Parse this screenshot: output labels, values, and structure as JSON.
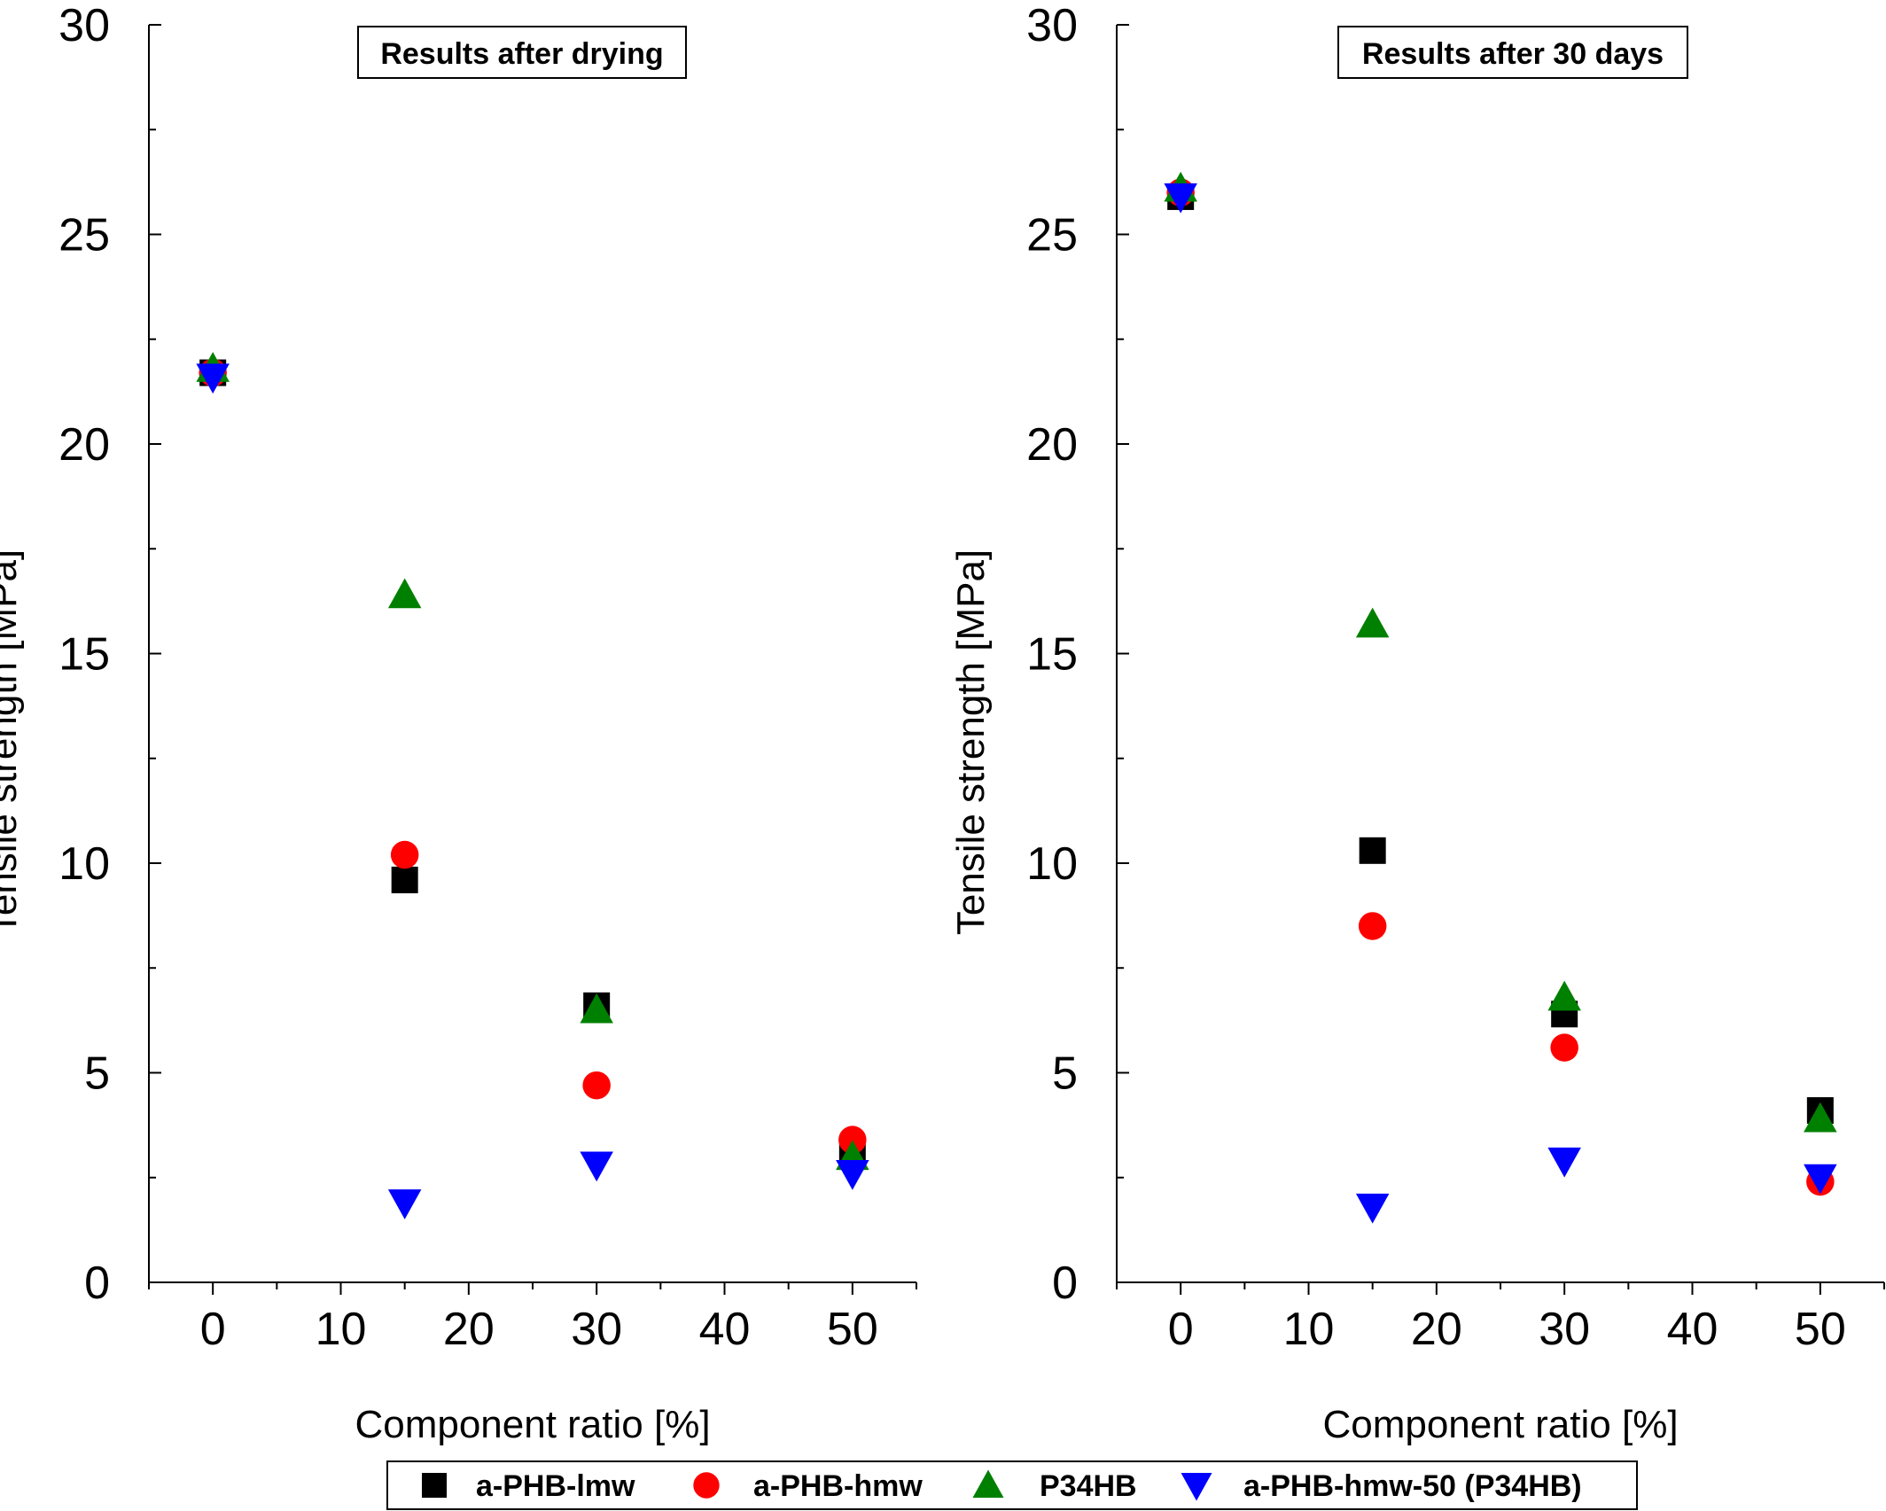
{
  "chart_data": [
    {
      "type": "scatter",
      "title": "Results after drying",
      "xlabel": "Component ratio [%]",
      "ylabel": "Tensile strength [MPa]",
      "xlim": [
        -5,
        55
      ],
      "ylim": [
        0,
        30
      ],
      "xticks": [
        0,
        10,
        20,
        30,
        40,
        50
      ],
      "yticks": [
        0,
        5,
        10,
        15,
        20,
        25,
        30
      ],
      "grid": false,
      "series": [
        {
          "name": "a-PHB-lmw",
          "marker": "square",
          "color": "#000000",
          "x": [
            0,
            15,
            30,
            50
          ],
          "y": [
            21.7,
            9.6,
            6.6,
            3.0
          ]
        },
        {
          "name": "a-PHB-hmw",
          "marker": "circle",
          "color": "#ff0000",
          "x": [
            0,
            15,
            30,
            50
          ],
          "y": [
            21.7,
            10.2,
            4.7,
            3.4
          ]
        },
        {
          "name": "P34HB",
          "marker": "triangle-up",
          "color": "#008000",
          "x": [
            0,
            15,
            30,
            50
          ],
          "y": [
            21.8,
            16.4,
            6.5,
            3.0
          ]
        },
        {
          "name": "a-PHB-hmw-50 (P34HB)",
          "marker": "triangle-down",
          "color": "#0000ff",
          "x": [
            0,
            15,
            30,
            50
          ],
          "y": [
            21.6,
            1.9,
            2.8,
            2.6
          ]
        }
      ]
    },
    {
      "type": "scatter",
      "title": "Results after 30 days",
      "xlabel": "Component ratio [%]",
      "ylabel": "Tensile strength [MPa]",
      "xlim": [
        -5,
        55
      ],
      "ylim": [
        0,
        30
      ],
      "xticks": [
        0,
        10,
        20,
        30,
        40,
        50
      ],
      "yticks": [
        0,
        5,
        10,
        15,
        20,
        25,
        30
      ],
      "grid": false,
      "series": [
        {
          "name": "a-PHB-lmw",
          "marker": "square",
          "color": "#000000",
          "x": [
            0,
            15,
            30,
            50
          ],
          "y": [
            25.9,
            10.3,
            6.4,
            4.1
          ]
        },
        {
          "name": "a-PHB-hmw",
          "marker": "circle",
          "color": "#ff0000",
          "x": [
            0,
            15,
            30,
            50
          ],
          "y": [
            26.0,
            8.5,
            5.6,
            2.4
          ]
        },
        {
          "name": "P34HB",
          "marker": "triangle-up",
          "color": "#008000",
          "x": [
            0,
            15,
            30,
            50
          ],
          "y": [
            26.1,
            15.7,
            6.8,
            3.9
          ]
        },
        {
          "name": "a-PHB-hmw-50 (P34HB)",
          "marker": "triangle-down",
          "color": "#0000ff",
          "x": [
            0,
            15,
            30,
            50
          ],
          "y": [
            25.9,
            1.8,
            2.9,
            2.5
          ]
        }
      ]
    }
  ],
  "legend": {
    "placement": "bottom-center",
    "entries": [
      {
        "label": "a-PHB-lmw",
        "marker": "square",
        "color": "#000000"
      },
      {
        "label": "a-PHB-hmw",
        "marker": "circle",
        "color": "#ff0000"
      },
      {
        "label": "P34HB",
        "marker": "triangle-up",
        "color": "#008000"
      },
      {
        "label": "a-PHB-hmw-50 (P34HB)",
        "marker": "triangle-down",
        "color": "#0000ff"
      }
    ]
  }
}
